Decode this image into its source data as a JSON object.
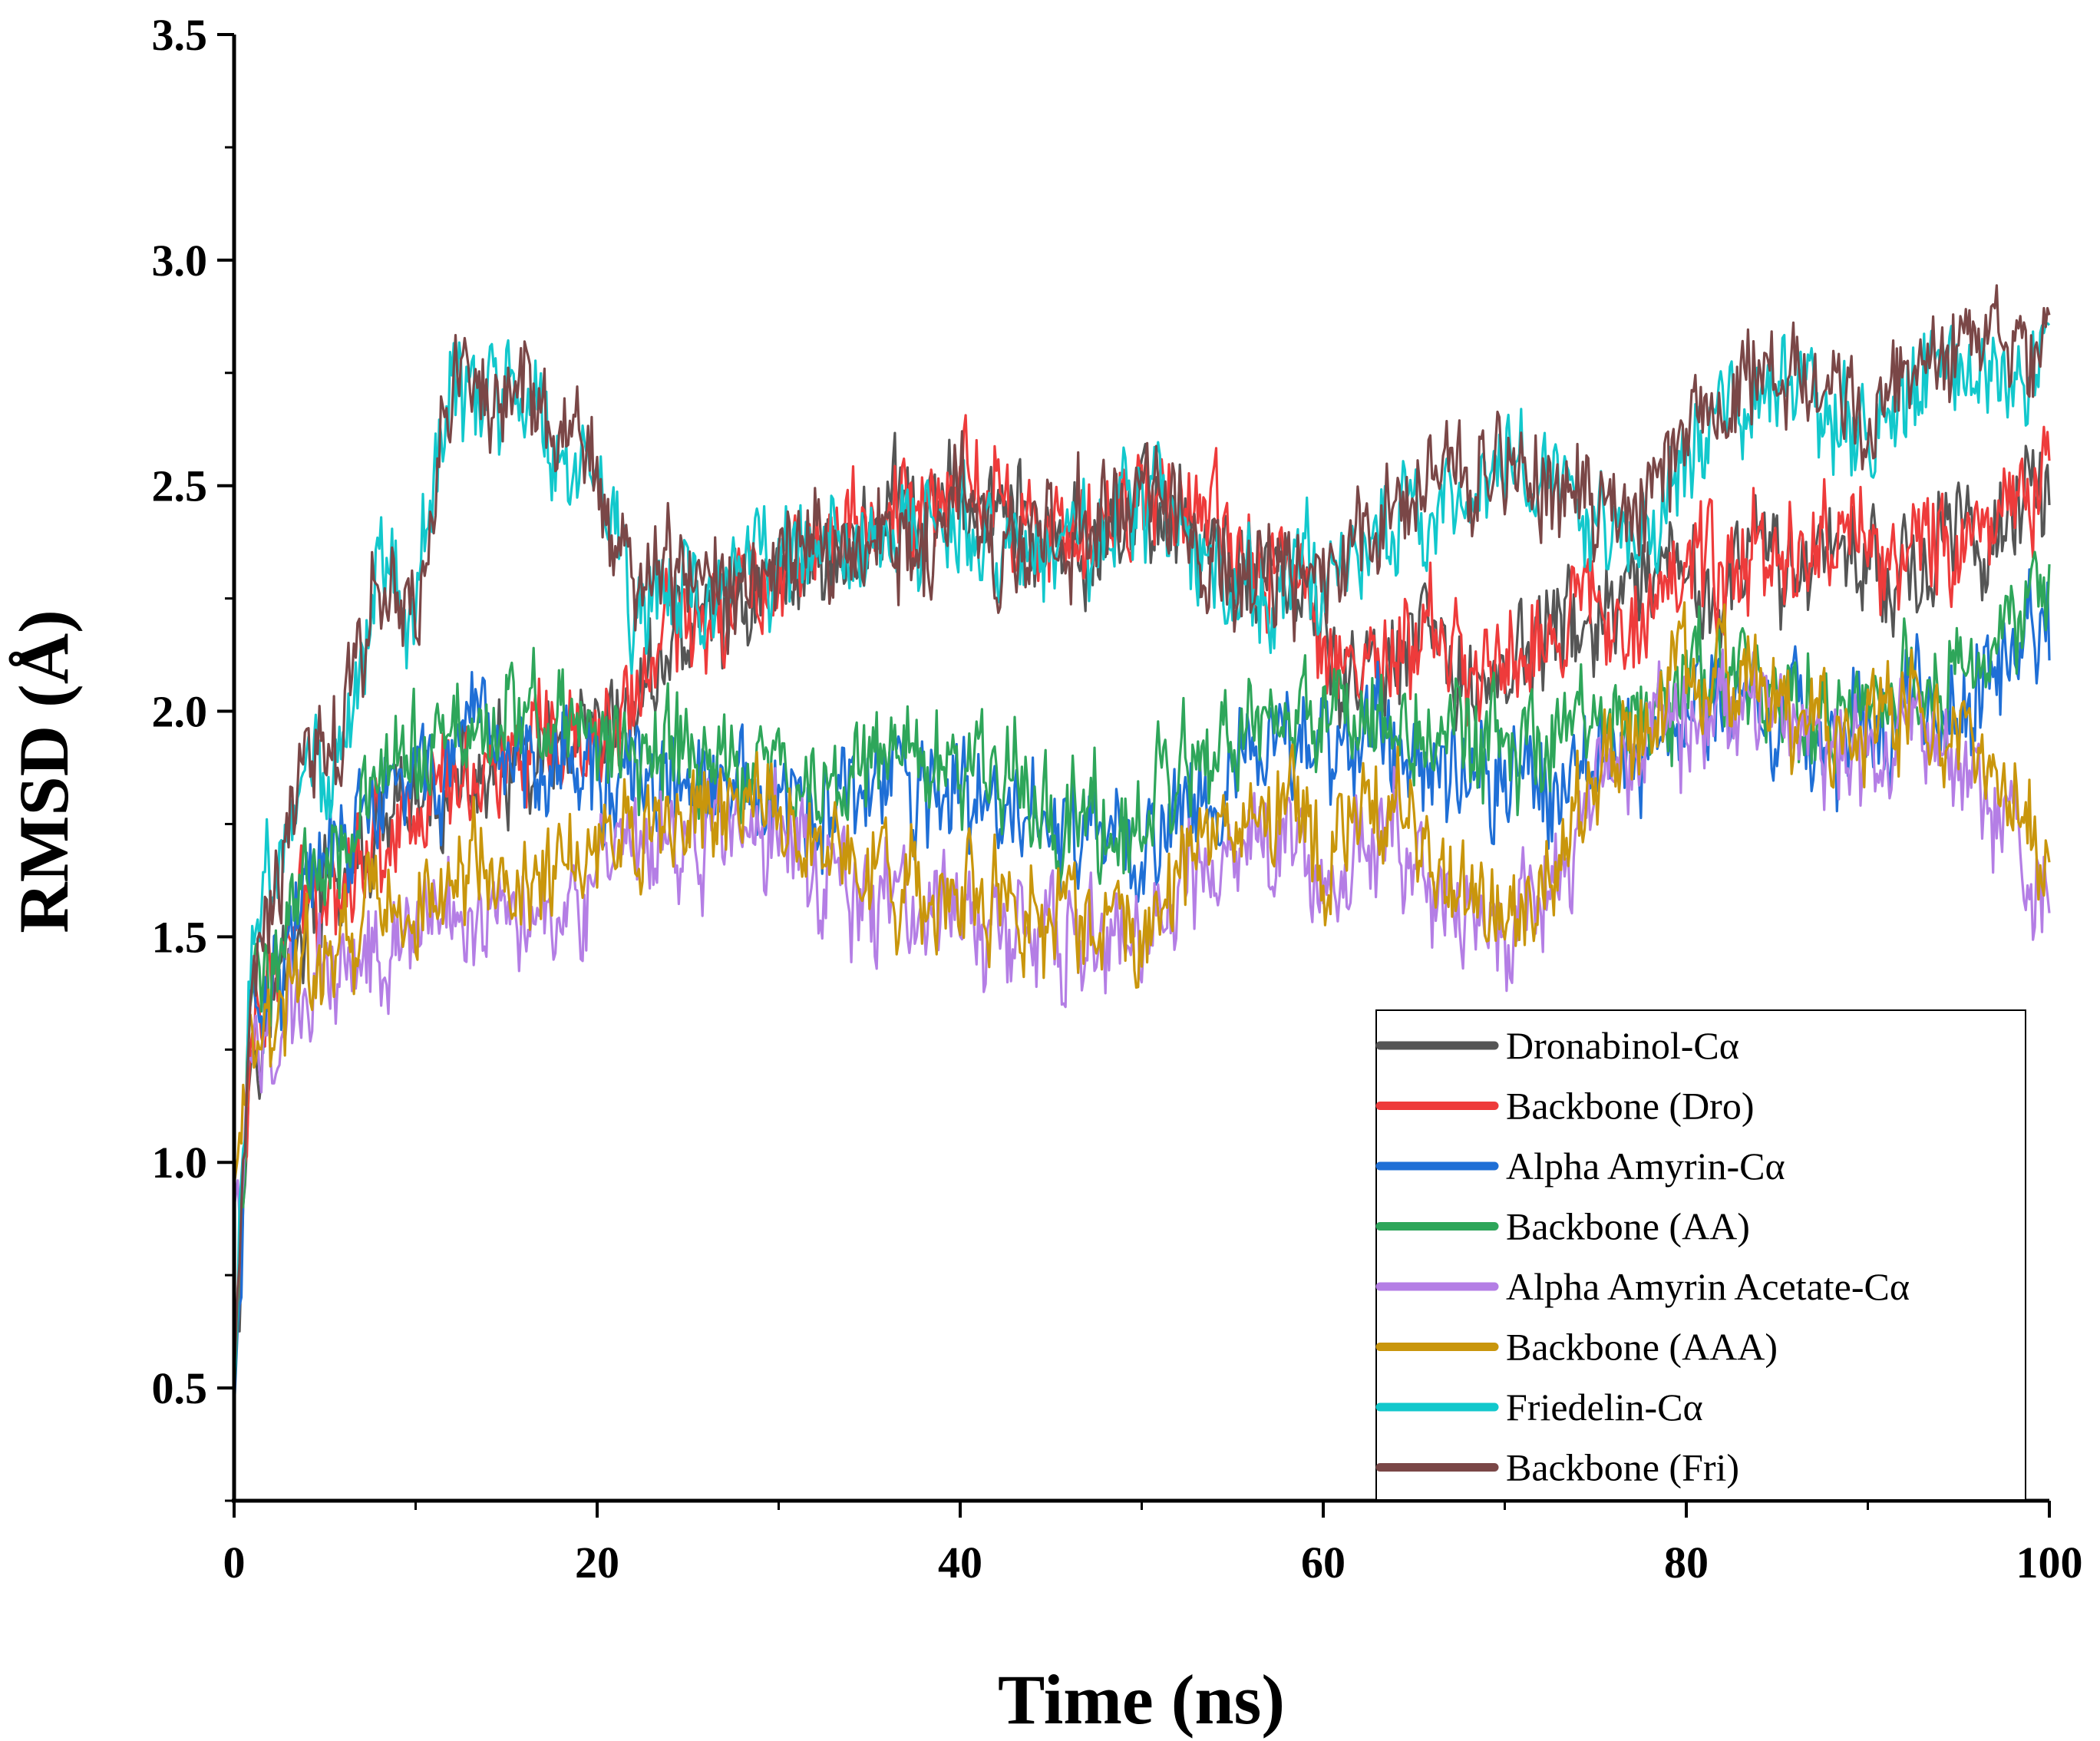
{
  "chart_data": {
    "type": "line",
    "title": "",
    "xlabel": "Time (ns)",
    "ylabel": "RMSD (Å)",
    "xlim": [
      0,
      100
    ],
    "ylim": [
      0.25,
      3.5
    ],
    "xticks": [
      0,
      20,
      40,
      60,
      80,
      100
    ],
    "xtick_labels": [
      "0",
      "20",
      "40",
      "60",
      "80",
      "100"
    ],
    "yticks": [
      0.5,
      1.0,
      1.5,
      2.0,
      2.5,
      3.0,
      3.5
    ],
    "ytick_labels": [
      "0.5",
      "1.0",
      "1.5",
      "2.0",
      "2.5",
      "3.0",
      "3.5"
    ],
    "grid": false,
    "legend_position": "bottom-right",
    "series": [
      {
        "name": "Dronabinol-Cα",
        "color": "#555555",
        "x": [
          0,
          1,
          2,
          4,
          6,
          8,
          10,
          12,
          14,
          16,
          18,
          20,
          22,
          24,
          26,
          28,
          30,
          32,
          34,
          36,
          38,
          40,
          42,
          44,
          46,
          48,
          50,
          52,
          54,
          56,
          58,
          60,
          62,
          64,
          66,
          68,
          70,
          72,
          74,
          76,
          78,
          80,
          82,
          84,
          86,
          88,
          90,
          92,
          94,
          96,
          98,
          100
        ],
        "values": [
          0.5,
          1.3,
          1.35,
          1.55,
          1.62,
          1.7,
          1.78,
          1.82,
          1.85,
          1.85,
          1.88,
          1.9,
          2.0,
          2.15,
          2.2,
          2.25,
          2.3,
          2.35,
          2.35,
          2.45,
          2.4,
          2.5,
          2.45,
          2.4,
          2.3,
          2.4,
          2.45,
          2.45,
          2.35,
          2.3,
          2.3,
          2.15,
          2.05,
          2.1,
          2.15,
          2.05,
          2.1,
          2.15,
          2.2,
          2.2,
          2.25,
          2.3,
          2.25,
          2.35,
          2.3,
          2.4,
          2.35,
          2.3,
          2.35,
          2.4,
          2.45,
          2.45
        ]
      },
      {
        "name": "Backbone (Dro)",
        "color": "#ee3b3b",
        "x": [
          0,
          1,
          2,
          4,
          6,
          8,
          10,
          12,
          14,
          16,
          18,
          20,
          22,
          24,
          26,
          28,
          30,
          32,
          34,
          36,
          38,
          40,
          42,
          44,
          46,
          48,
          50,
          52,
          54,
          56,
          58,
          60,
          62,
          64,
          66,
          68,
          70,
          72,
          74,
          76,
          78,
          80,
          82,
          84,
          86,
          88,
          90,
          92,
          94,
          96,
          98,
          100
        ],
        "values": [
          0.5,
          1.32,
          1.38,
          1.58,
          1.65,
          1.72,
          1.8,
          1.85,
          1.88,
          1.88,
          1.9,
          1.92,
          2.02,
          2.18,
          2.22,
          2.28,
          2.32,
          2.38,
          2.38,
          2.48,
          2.42,
          2.55,
          2.48,
          2.42,
          2.32,
          2.42,
          2.5,
          2.5,
          2.38,
          2.32,
          2.32,
          2.18,
          2.08,
          2.12,
          2.18,
          2.08,
          2.12,
          2.18,
          2.22,
          2.22,
          2.28,
          2.32,
          2.28,
          2.38,
          2.32,
          2.42,
          2.38,
          2.32,
          2.38,
          2.42,
          2.48,
          2.5
        ]
      },
      {
        "name": "Alpha Amyrin-Cα",
        "color": "#1f6fd6",
        "x": [
          0,
          1,
          2,
          4,
          6,
          8,
          10,
          12,
          14,
          16,
          18,
          20,
          22,
          24,
          26,
          28,
          30,
          32,
          34,
          36,
          38,
          40,
          42,
          44,
          46,
          48,
          50,
          52,
          54,
          56,
          58,
          60,
          62,
          64,
          66,
          68,
          70,
          72,
          74,
          76,
          78,
          80,
          82,
          84,
          86,
          88,
          90,
          92,
          94,
          96,
          98,
          100
        ],
        "values": [
          0.45,
          1.38,
          1.4,
          1.6,
          1.7,
          1.78,
          1.85,
          1.88,
          1.9,
          1.9,
          1.92,
          1.85,
          1.82,
          1.85,
          1.8,
          1.82,
          1.78,
          1.75,
          1.8,
          1.85,
          1.82,
          1.8,
          1.78,
          1.75,
          1.72,
          1.7,
          1.68,
          1.8,
          1.85,
          1.88,
          1.9,
          1.95,
          1.95,
          1.92,
          1.9,
          1.9,
          1.85,
          1.85,
          1.88,
          1.9,
          1.95,
          2.0,
          2.02,
          2.0,
          1.98,
          1.95,
          1.95,
          2.0,
          2.0,
          2.05,
          2.15,
          2.2
        ]
      },
      {
        "name": "Backbone (AA)",
        "color": "#2ea65a",
        "x": [
          0,
          1,
          2,
          4,
          6,
          8,
          10,
          12,
          14,
          16,
          18,
          20,
          22,
          24,
          26,
          28,
          30,
          32,
          34,
          36,
          38,
          40,
          42,
          44,
          46,
          48,
          50,
          52,
          54,
          56,
          58,
          60,
          62,
          64,
          66,
          68,
          70,
          72,
          74,
          76,
          78,
          80,
          82,
          84,
          86,
          88,
          90,
          92,
          94,
          96,
          98,
          100
        ],
        "values": [
          0.48,
          1.42,
          1.45,
          1.65,
          1.75,
          1.82,
          1.9,
          1.95,
          1.98,
          1.98,
          2.0,
          1.92,
          1.9,
          1.92,
          1.88,
          1.9,
          1.85,
          1.82,
          1.88,
          1.92,
          1.9,
          1.88,
          1.85,
          1.82,
          1.78,
          1.75,
          1.72,
          1.85,
          1.9,
          1.92,
          1.95,
          2.0,
          2.0,
          1.98,
          1.95,
          1.95,
          1.9,
          1.9,
          1.92,
          1.95,
          2.0,
          2.05,
          2.08,
          2.05,
          2.02,
          2.0,
          2.0,
          2.05,
          2.05,
          2.1,
          2.2,
          2.25
        ]
      },
      {
        "name": "Alpha Amyrin Acetate-Cα",
        "color": "#b47ee5",
        "x": [
          0,
          1,
          2,
          4,
          6,
          8,
          10,
          12,
          14,
          16,
          18,
          20,
          22,
          24,
          26,
          28,
          30,
          32,
          34,
          36,
          38,
          40,
          42,
          44,
          46,
          48,
          50,
          52,
          54,
          56,
          58,
          60,
          62,
          64,
          66,
          68,
          70,
          72,
          74,
          76,
          78,
          80,
          82,
          84,
          86,
          88,
          90,
          92,
          94,
          96,
          98,
          100
        ],
        "values": [
          0.9,
          1.2,
          1.25,
          1.38,
          1.45,
          1.5,
          1.52,
          1.55,
          1.58,
          1.58,
          1.6,
          1.62,
          1.65,
          1.7,
          1.72,
          1.75,
          1.72,
          1.68,
          1.6,
          1.58,
          1.55,
          1.55,
          1.52,
          1.5,
          1.5,
          1.48,
          1.45,
          1.6,
          1.65,
          1.7,
          1.75,
          1.6,
          1.7,
          1.75,
          1.55,
          1.52,
          1.5,
          1.6,
          1.7,
          1.85,
          1.95,
          2.0,
          2.05,
          2.0,
          1.95,
          1.9,
          1.9,
          1.95,
          1.9,
          1.85,
          1.75,
          1.6
        ]
      },
      {
        "name": "Backbone (AAA)",
        "color": "#c9960c",
        "x": [
          0,
          1,
          2,
          4,
          6,
          8,
          10,
          12,
          14,
          16,
          18,
          20,
          22,
          24,
          26,
          28,
          30,
          32,
          34,
          36,
          38,
          40,
          42,
          44,
          46,
          48,
          50,
          52,
          54,
          56,
          58,
          60,
          62,
          64,
          66,
          68,
          70,
          72,
          74,
          76,
          78,
          80,
          82,
          84,
          86,
          88,
          90,
          92,
          94,
          96,
          98,
          100
        ],
        "values": [
          0.95,
          1.25,
          1.3,
          1.42,
          1.5,
          1.55,
          1.58,
          1.6,
          1.63,
          1.63,
          1.65,
          1.68,
          1.7,
          1.75,
          1.78,
          1.8,
          1.78,
          1.72,
          1.65,
          1.62,
          1.6,
          1.6,
          1.58,
          1.55,
          1.55,
          1.52,
          1.5,
          1.65,
          1.7,
          1.75,
          1.8,
          1.65,
          1.75,
          1.8,
          1.6,
          1.58,
          1.55,
          1.65,
          1.75,
          1.9,
          2.0,
          2.05,
          2.1,
          2.05,
          2.0,
          1.95,
          1.95,
          2.0,
          1.95,
          1.9,
          1.8,
          1.65
        ]
      },
      {
        "name": "Friedelin-Cα",
        "color": "#12c8cc",
        "x": [
          0,
          1,
          2,
          4,
          6,
          8,
          10,
          12,
          14,
          16,
          18,
          20,
          22,
          24,
          26,
          28,
          30,
          32,
          34,
          36,
          38,
          40,
          42,
          44,
          46,
          48,
          50,
          52,
          54,
          56,
          58,
          60,
          62,
          64,
          66,
          68,
          70,
          72,
          74,
          76,
          78,
          80,
          82,
          84,
          86,
          88,
          90,
          92,
          94,
          96,
          98,
          100
        ],
        "values": [
          0.5,
          1.5,
          1.6,
          1.85,
          1.95,
          2.3,
          2.2,
          2.75,
          2.65,
          2.7,
          2.6,
          2.5,
          2.2,
          2.3,
          2.25,
          2.28,
          2.3,
          2.35,
          2.35,
          2.4,
          2.35,
          2.45,
          2.35,
          2.32,
          2.38,
          2.4,
          2.45,
          2.45,
          2.28,
          2.25,
          2.3,
          2.3,
          2.35,
          2.42,
          2.45,
          2.5,
          2.55,
          2.5,
          2.45,
          2.4,
          2.45,
          2.55,
          2.65,
          2.7,
          2.72,
          2.65,
          2.62,
          2.7,
          2.78,
          2.75,
          2.75,
          2.78
        ]
      },
      {
        "name": "Backbone (Fri)",
        "color": "#7a4747",
        "x": [
          0,
          1,
          2,
          4,
          6,
          8,
          10,
          12,
          14,
          16,
          18,
          20,
          22,
          24,
          26,
          28,
          30,
          32,
          34,
          36,
          38,
          40,
          42,
          44,
          46,
          48,
          50,
          52,
          54,
          56,
          58,
          60,
          62,
          64,
          66,
          68,
          70,
          72,
          74,
          76,
          78,
          80,
          82,
          84,
          86,
          88,
          90,
          92,
          94,
          96,
          98,
          100
        ],
        "values": [
          0.52,
          1.52,
          1.62,
          1.88,
          1.98,
          2.32,
          2.22,
          2.78,
          2.68,
          2.72,
          2.62,
          2.52,
          2.22,
          2.32,
          2.28,
          2.3,
          2.32,
          2.38,
          2.38,
          2.42,
          2.38,
          2.48,
          2.38,
          2.35,
          2.4,
          2.42,
          2.48,
          2.48,
          2.3,
          2.28,
          2.32,
          2.32,
          2.38,
          2.45,
          2.48,
          2.52,
          2.58,
          2.52,
          2.48,
          2.42,
          2.48,
          2.58,
          2.68,
          2.72,
          2.75,
          2.68,
          2.65,
          2.72,
          2.8,
          2.78,
          2.78,
          2.8
        ]
      }
    ]
  }
}
